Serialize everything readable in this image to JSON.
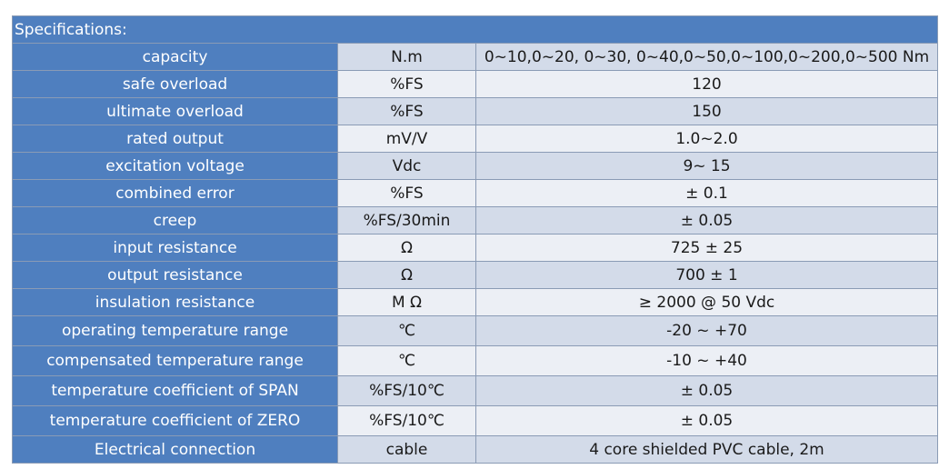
{
  "header": {
    "title": "Specifications:"
  },
  "table": {
    "rows": [
      [
        "capacity",
        "N.m",
        "0~10,0~20, 0~30, 0~40,0~50,0~100,0~200,0~500 Nm"
      ],
      [
        "safe overload",
        "%FS",
        "120"
      ],
      [
        "ultimate overload",
        "%FS",
        "150"
      ],
      [
        "rated output",
        "mV/V",
        "1.0~2.0"
      ],
      [
        "excitation voltage",
        "Vdc",
        "9~ 15"
      ],
      [
        "combined error",
        "%FS",
        "± 0.1"
      ],
      [
        "creep",
        "%FS/30min",
        "± 0.05"
      ],
      [
        "input resistance",
        "Ω",
        "725 ± 25"
      ],
      [
        "output resistance",
        "Ω",
        "700 ± 1"
      ],
      [
        "insulation resistance",
        "M Ω",
        "≥ 2000 @ 50 Vdc"
      ],
      [
        "operating temperature range",
        "℃",
        "-20 ~ +70"
      ],
      [
        "compensated temperature range",
        "℃",
        "-10 ~ +40"
      ],
      [
        "temperature coefficient of SPAN",
        "%FS/10℃",
        "± 0.05"
      ],
      [
        "temperature coefficient of ZERO",
        "%FS/10℃",
        "± 0.05"
      ],
      [
        "Electrical connection",
        "cable",
        "4 core shielded PVC cable, 2m"
      ]
    ]
  }
}
